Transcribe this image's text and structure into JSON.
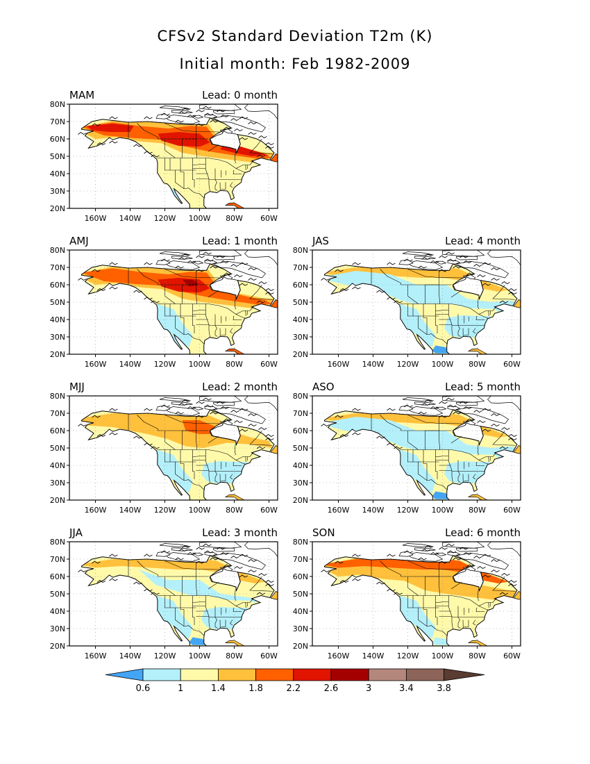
{
  "title_line1": "CFSv2 Standard Deviation T2m (K)",
  "title_line2": "Initial month: Feb 1982-2009",
  "panels": [
    {
      "season": "MAM",
      "lead": "Lead: 0 month"
    },
    {
      "season": "AMJ",
      "lead": "Lead: 1 month"
    },
    {
      "season": "JAS",
      "lead": "Lead: 4 month"
    },
    {
      "season": "MJJ",
      "lead": "Lead: 2 month"
    },
    {
      "season": "ASO",
      "lead": "Lead: 5 month"
    },
    {
      "season": "JJA",
      "lead": "Lead: 3 month"
    },
    {
      "season": "SON",
      "lead": "Lead: 6 month"
    }
  ],
  "lat_labels": [
    "80N",
    "70N",
    "60N",
    "50N",
    "40N",
    "30N",
    "20N"
  ],
  "lon_labels": [
    "160W",
    "140W",
    "120W",
    "100W",
    "80W",
    "60W"
  ],
  "colorbar": {
    "labels": [
      "0.6",
      "1",
      "1.4",
      "1.8",
      "2.2",
      "2.6",
      "3",
      "3.4",
      "3.8"
    ],
    "colors": [
      "#44a5f5",
      "#b4f0fa",
      "#fffaaa",
      "#ffc03c",
      "#ff6000",
      "#e11400",
      "#a50000",
      "#b4877d",
      "#8c6459",
      "#5a3c32"
    ]
  }
}
